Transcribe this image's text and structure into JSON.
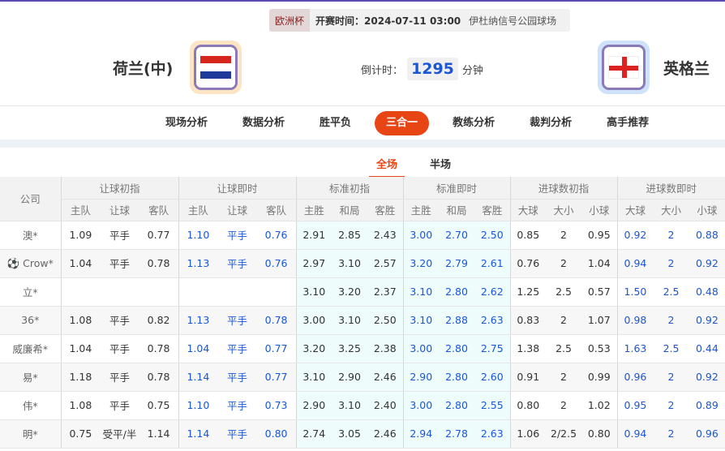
{
  "match": {
    "league": "欧洲杯",
    "time": "开赛时间：2024-07-11 03:00",
    "venue": "伊杜纳信号公园球场",
    "home": "荷兰(中)",
    "away": "英格兰",
    "countdown_label": "倒计时：",
    "countdown": "1295",
    "countdown_unit": "分钟",
    "home_flag": "netherlands-flag",
    "away_flag": "england-flag"
  },
  "nav": [
    "现场分析",
    "数据分析",
    "胜平负",
    "三合一",
    "教练分析",
    "裁判分析",
    "高手推荐"
  ],
  "nav_active": "三合一",
  "subtabs": [
    "全场",
    "半场"
  ],
  "subtab_active": "全场",
  "table": {
    "company_header": "公司",
    "groups": [
      "让球初指",
      "让球即时",
      "标准初指",
      "标准即时",
      "进球数初指",
      "进球数即时"
    ],
    "sub": [
      [
        "主队",
        "让球",
        "客队"
      ],
      [
        "主队",
        "让球",
        "客队"
      ],
      [
        "主胜",
        "和局",
        "客胜"
      ],
      [
        "主胜",
        "和局",
        "客胜"
      ],
      [
        "大球",
        "大小",
        "小球"
      ],
      [
        "大球",
        "大小",
        "小球"
      ]
    ],
    "rows": [
      [
        "澳*",
        "1.09",
        "平手",
        "0.77",
        "1.10",
        "平手",
        "0.76",
        "2.91",
        "2.85",
        "2.43",
        "3.00",
        "2.70",
        "2.50",
        "0.85",
        "2",
        "0.95",
        "0.92",
        "2",
        "0.88"
      ],
      [
        "Crow*",
        "1.04",
        "平手",
        "0.78",
        "1.13",
        "平手",
        "0.76",
        "2.97",
        "3.10",
        "2.57",
        "3.20",
        "2.79",
        "2.61",
        "0.76",
        "2",
        "1.04",
        "0.94",
        "2",
        "0.92"
      ],
      [
        "立*",
        "",
        "",
        "",
        "",
        "",
        "",
        "3.10",
        "3.20",
        "2.37",
        "3.10",
        "2.80",
        "2.62",
        "1.25",
        "2.5",
        "0.57",
        "1.50",
        "2.5",
        "0.48"
      ],
      [
        "36*",
        "1.08",
        "平手",
        "0.82",
        "1.13",
        "平手",
        "0.78",
        "3.00",
        "3.10",
        "2.50",
        "3.10",
        "2.88",
        "2.63",
        "0.83",
        "2",
        "1.07",
        "0.98",
        "2",
        "0.92"
      ],
      [
        "威廉希*",
        "1.04",
        "平手",
        "0.78",
        "1.04",
        "平手",
        "0.77",
        "3.20",
        "3.25",
        "2.38",
        "3.00",
        "2.80",
        "2.75",
        "1.38",
        "2.5",
        "0.53",
        "1.63",
        "2.5",
        "0.44"
      ],
      [
        "易*",
        "1.18",
        "平手",
        "0.78",
        "1.14",
        "平手",
        "0.77",
        "3.10",
        "2.90",
        "2.46",
        "2.90",
        "2.80",
        "2.60",
        "0.91",
        "2",
        "0.99",
        "0.96",
        "2",
        "0.92"
      ],
      [
        "伟*",
        "1.08",
        "平手",
        "0.75",
        "1.10",
        "平手",
        "0.73",
        "2.90",
        "3.10",
        "2.40",
        "3.00",
        "2.80",
        "2.55",
        "0.80",
        "2",
        "1.02",
        "0.95",
        "2",
        "0.89"
      ],
      [
        "明*",
        "0.75",
        "受平/半",
        "1.14",
        "1.14",
        "平手",
        "0.80",
        "2.74",
        "3.05",
        "2.46",
        "2.94",
        "2.78",
        "2.63",
        "1.06",
        "2/2.5",
        "0.80",
        "0.94",
        "2",
        "0.96"
      ]
    ]
  },
  "colors": {
    "accent": "#e84515",
    "live": "#1a56d6"
  }
}
